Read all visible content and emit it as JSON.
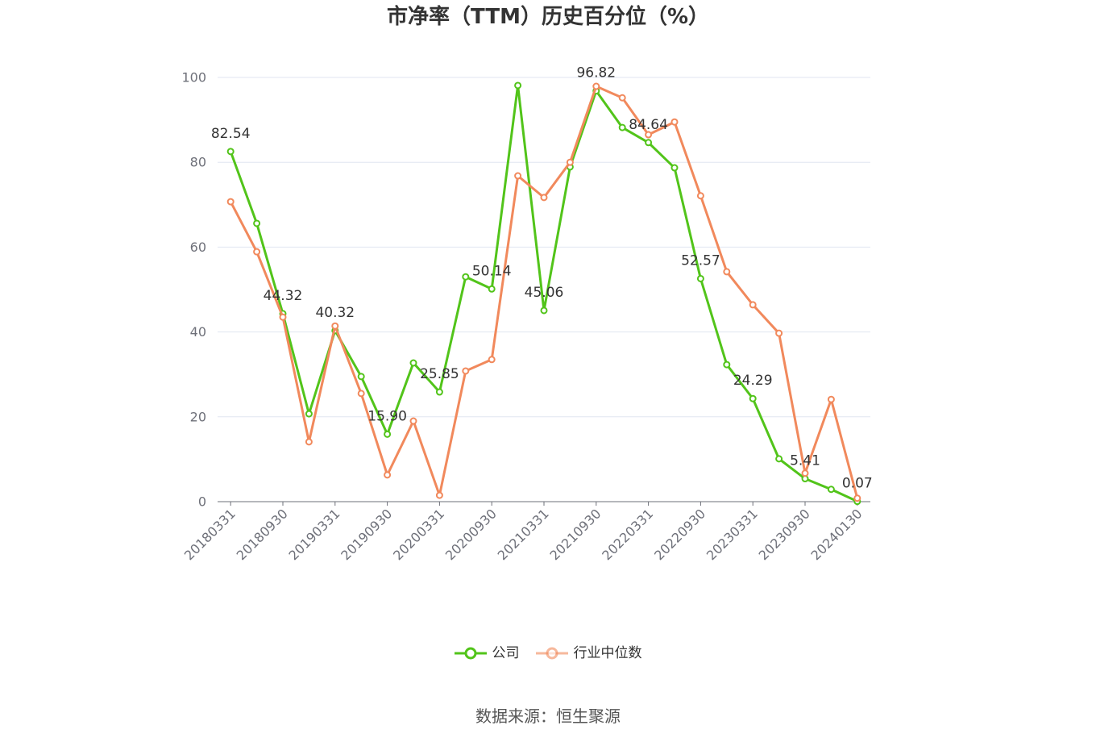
{
  "source": "数据来源：恒生聚源",
  "chart_data": {
    "type": "line",
    "title": "市净率（TTM）历史百分位（%）",
    "categories": [
      "20180331",
      "",
      "20180930",
      "",
      "20190331",
      "",
      "20190930",
      "",
      "20200331",
      "",
      "20200930",
      "",
      "20210331",
      "",
      "20210930",
      "",
      "20220331",
      "",
      "20220930",
      "",
      "20230331",
      "",
      "20230930",
      "",
      "20240130"
    ],
    "ylim": [
      0,
      100
    ],
    "yticks": [
      0,
      20,
      40,
      60,
      80,
      100
    ],
    "grid": true,
    "legend": "bottom-center",
    "series": [
      {
        "name": "公司",
        "color": "#52c41a",
        "values": [
          82.54,
          65.6,
          44.32,
          20.7,
          40.32,
          29.5,
          15.9,
          32.7,
          25.85,
          53.0,
          50.14,
          98.1,
          45.06,
          78.9,
          96.82,
          88.2,
          84.64,
          78.7,
          52.57,
          32.3,
          24.29,
          10.1,
          5.41,
          2.9,
          0.07
        ],
        "data_labels": [
          "82.54",
          "",
          "44.32",
          "",
          "40.32",
          "",
          "15.90",
          "",
          "25.85",
          "",
          "50.14",
          "",
          "45.06",
          "",
          "96.82",
          "",
          "84.64",
          "",
          "52.57",
          "",
          "24.29",
          "",
          "5.41",
          "",
          "0.07"
        ]
      },
      {
        "name": "行业中位数",
        "color": "#f1895c",
        "values": [
          70.7,
          58.9,
          43.5,
          14.1,
          41.4,
          25.5,
          6.3,
          19.0,
          1.5,
          30.8,
          33.5,
          76.8,
          71.7,
          80.0,
          97.9,
          95.2,
          86.5,
          89.5,
          72.1,
          54.2,
          46.4,
          39.7,
          6.7,
          24.1,
          0.8
        ]
      }
    ]
  }
}
